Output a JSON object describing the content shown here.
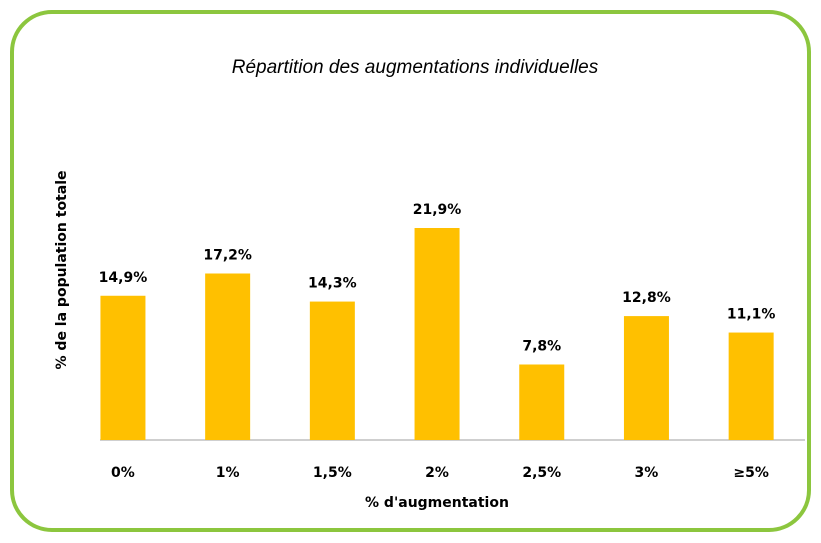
{
  "chart_data": {
    "type": "bar",
    "title": "Répartition des augmentations individuelles",
    "x_label": "% d'augmentation",
    "y_label": "% de la population totale",
    "categories": [
      "0%",
      "1%",
      "1,5%",
      "2%",
      "2,5%",
      "3%",
      "≥5%"
    ],
    "values": [
      14.9,
      17.2,
      14.3,
      21.9,
      7.8,
      12.8,
      11.1
    ],
    "value_labels": [
      "14,9%",
      "17,2%",
      "14,3%",
      "21,9%",
      "7,8%",
      "12,8%",
      "11,1%"
    ],
    "color": "#ffc000"
  }
}
